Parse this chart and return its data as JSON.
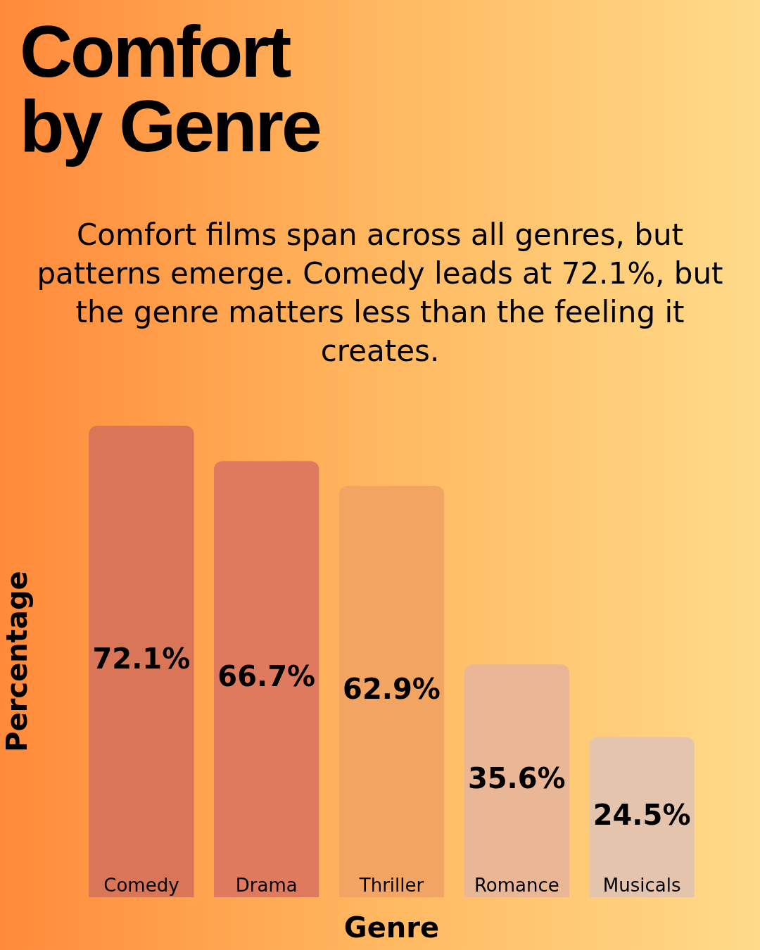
{
  "chart_data": {
    "type": "bar",
    "title": "Comfort by Genre",
    "subtitle": "Comfort films span across all genres, but patterns emerge. Comedy leads at 72.1%, but the genre matters less than the feeling it creates.",
    "xlabel": "Genre",
    "ylabel": "Percentage",
    "categories": [
      "Comedy",
      "Drama",
      "Thriller",
      "Romance",
      "Musicals"
    ],
    "values": [
      72.1,
      66.7,
      62.9,
      35.6,
      24.5
    ],
    "colors": [
      "#d97657",
      "#e07a5f",
      "#f2a463",
      "#e9b696",
      "#e5c4ad"
    ],
    "value_labels": [
      "72.1%",
      "66.7%",
      "62.9%",
      "35.6%",
      "24.5%"
    ],
    "grid": false,
    "legend": false
  }
}
